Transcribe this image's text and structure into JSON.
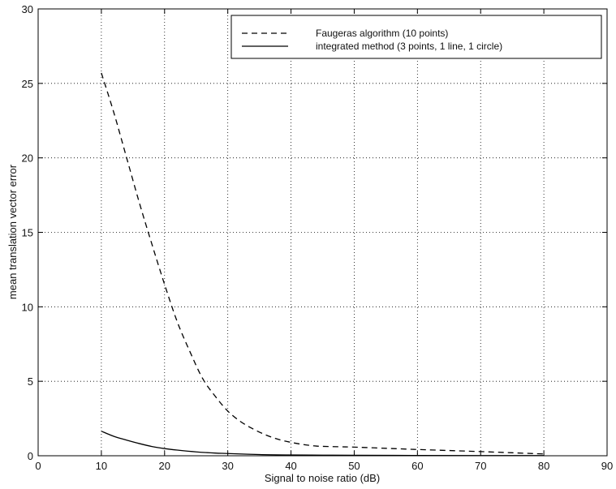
{
  "chart_data": {
    "type": "line",
    "xlabel": "Signal to noise ratio (dB)",
    "ylabel": "mean translation vector error",
    "xlim": [
      0,
      90
    ],
    "ylim": [
      0,
      30
    ],
    "xticks": [
      0,
      10,
      20,
      30,
      40,
      50,
      60,
      70,
      80,
      90
    ],
    "yticks": [
      0,
      5,
      10,
      15,
      20,
      25,
      30
    ],
    "grid": true,
    "legend_position": "top-right",
    "series": [
      {
        "name": "Faugeras algorithm (10 points)",
        "style": "dashed",
        "color": "#000000",
        "x": [
          10,
          12,
          14,
          16,
          18,
          20,
          22,
          24,
          26,
          28,
          30,
          32,
          34,
          36,
          38,
          40,
          42,
          44,
          46,
          48,
          50,
          55,
          60,
          65,
          70,
          75,
          80
        ],
        "y": [
          25.7,
          23.0,
          20.0,
          17.0,
          14.2,
          11.5,
          9.0,
          7.0,
          5.2,
          4.0,
          3.0,
          2.3,
          1.8,
          1.4,
          1.1,
          0.9,
          0.75,
          0.65,
          0.62,
          0.6,
          0.58,
          0.5,
          0.42,
          0.35,
          0.28,
          0.2,
          0.12
        ]
      },
      {
        "name": "integrated method (3 points, 1 line, 1 circle)",
        "style": "solid",
        "color": "#000000",
        "x": [
          10,
          12,
          14,
          16,
          18,
          20,
          22,
          25,
          28,
          30,
          35,
          40,
          45,
          50,
          60,
          70,
          80
        ],
        "y": [
          1.65,
          1.3,
          1.05,
          0.82,
          0.62,
          0.48,
          0.38,
          0.26,
          0.18,
          0.15,
          0.08,
          0.05,
          0.04,
          0.03,
          0.02,
          0.01,
          0.01
        ]
      }
    ]
  }
}
